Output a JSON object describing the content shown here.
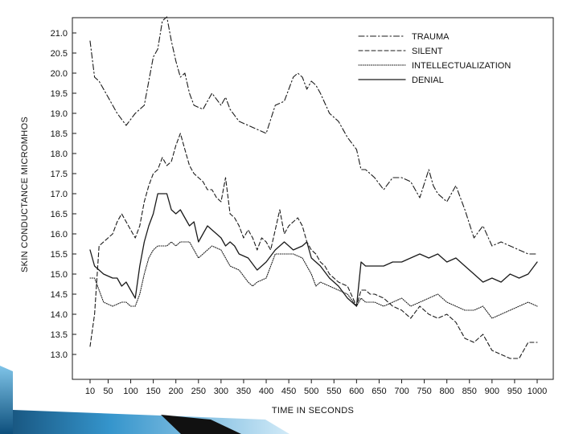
{
  "colors": {
    "ink": "#1a1a1a",
    "background": "#ffffff",
    "ribbon_light": "#7fc4e8",
    "ribbon_mid": "#2a8fc9",
    "ribbon_dark": "#0d4f7c",
    "wedge": "#111111"
  },
  "chart_data": {
    "type": "line",
    "title": "",
    "xlabel": "TIME IN SECONDS",
    "ylabel": "SKIN CONDUCTANCE MICROMHOS",
    "xlim": [
      10,
      1000
    ],
    "ylim": [
      12.6,
      21.4
    ],
    "x_ticks": [
      10,
      50,
      100,
      150,
      200,
      250,
      300,
      350,
      400,
      450,
      500,
      550,
      600,
      650,
      700,
      750,
      800,
      850,
      900,
      950,
      1000
    ],
    "x_tick_labels": [
      "10",
      "50",
      "100",
      "150",
      "200",
      "250",
      "300",
      "350",
      "400",
      "450",
      "500",
      "550",
      "600",
      "650",
      "700",
      "750",
      "800",
      "850",
      "900",
      "950",
      "1000"
    ],
    "y_ticks": [
      13.0,
      13.5,
      14.0,
      14.5,
      15.0,
      15.5,
      16.0,
      16.5,
      17.0,
      17.5,
      18.0,
      18.5,
      19.0,
      19.5,
      20.0,
      20.5,
      21.0
    ],
    "y_tick_labels": [
      "13.0",
      "13.5",
      "14.0",
      "14.5",
      "15.0",
      "15.5",
      "16.0",
      "16.5",
      "17.0",
      "17.5",
      "18.0",
      "18.5",
      "19.0",
      "19.5",
      "20.0",
      "20.5",
      "21.0"
    ],
    "grid": false,
    "legend_position": "top-right",
    "series": [
      {
        "name": "TRAUMA",
        "style": "dashdot",
        "x": [
          10,
          20,
          30,
          50,
          70,
          90,
          110,
          130,
          140,
          150,
          160,
          170,
          180,
          190,
          200,
          210,
          220,
          230,
          240,
          260,
          280,
          300,
          310,
          320,
          340,
          360,
          380,
          400,
          420,
          440,
          450,
          460,
          470,
          480,
          490,
          500,
          510,
          520,
          540,
          560,
          580,
          600,
          610,
          620,
          640,
          660,
          680,
          700,
          720,
          740,
          760,
          770,
          780,
          800,
          820,
          840,
          860,
          880,
          900,
          920,
          940,
          960,
          980,
          1000
        ],
        "values": [
          20.8,
          19.9,
          19.8,
          19.4,
          19.0,
          18.7,
          19.0,
          19.2,
          19.8,
          20.4,
          20.6,
          21.3,
          21.4,
          20.8,
          20.3,
          19.9,
          20.0,
          19.5,
          19.2,
          19.1,
          19.5,
          19.2,
          19.4,
          19.1,
          18.8,
          18.7,
          18.6,
          18.5,
          19.2,
          19.3,
          19.6,
          19.9,
          20.0,
          19.9,
          19.6,
          19.8,
          19.7,
          19.5,
          19.0,
          18.8,
          18.4,
          18.1,
          17.6,
          17.6,
          17.4,
          17.1,
          17.4,
          17.4,
          17.3,
          16.9,
          17.6,
          17.2,
          17.0,
          16.8,
          17.2,
          16.6,
          15.9,
          16.2,
          15.7,
          15.8,
          15.7,
          15.6,
          15.5,
          15.5
        ]
      },
      {
        "name": "SILENT",
        "style": "dashed",
        "x": [
          10,
          20,
          30,
          40,
          60,
          70,
          80,
          90,
          100,
          110,
          120,
          130,
          140,
          150,
          160,
          170,
          180,
          190,
          200,
          210,
          220,
          230,
          240,
          250,
          260,
          270,
          280,
          290,
          300,
          310,
          320,
          330,
          340,
          350,
          360,
          370,
          380,
          390,
          400,
          410,
          420,
          430,
          440,
          450,
          460,
          470,
          480,
          490,
          500,
          510,
          520,
          530,
          540,
          560,
          580,
          600,
          610,
          620,
          630,
          640,
          660,
          680,
          700,
          720,
          740,
          760,
          780,
          800,
          820,
          840,
          860,
          880,
          900,
          920,
          940,
          960,
          980,
          1000
        ],
        "values": [
          13.2,
          14.0,
          15.7,
          15.8,
          16.0,
          16.3,
          16.5,
          16.3,
          16.1,
          15.9,
          16.2,
          16.8,
          17.2,
          17.5,
          17.6,
          17.9,
          17.7,
          17.8,
          18.2,
          18.5,
          18.1,
          17.7,
          17.5,
          17.4,
          17.3,
          17.1,
          17.1,
          16.9,
          16.8,
          17.4,
          16.5,
          16.4,
          16.2,
          15.9,
          16.1,
          15.9,
          15.6,
          15.9,
          15.8,
          15.6,
          16.1,
          16.6,
          16.0,
          16.2,
          16.3,
          16.4,
          16.2,
          15.8,
          15.6,
          15.5,
          15.3,
          15.2,
          15.0,
          14.8,
          14.7,
          14.2,
          14.6,
          14.6,
          14.5,
          14.5,
          14.4,
          14.2,
          14.1,
          13.9,
          14.2,
          14.0,
          13.9,
          14.0,
          13.8,
          13.4,
          13.3,
          13.5,
          13.1,
          13.0,
          12.9,
          12.9,
          13.3,
          13.3
        ]
      },
      {
        "name": "INTELLECTUALIZATION",
        "style": "dotted",
        "x": [
          10,
          20,
          30,
          40,
          60,
          80,
          90,
          100,
          110,
          120,
          130,
          140,
          150,
          160,
          170,
          180,
          190,
          200,
          210,
          220,
          230,
          240,
          250,
          260,
          280,
          300,
          310,
          320,
          340,
          360,
          370,
          380,
          400,
          420,
          440,
          460,
          480,
          500,
          510,
          520,
          540,
          560,
          580,
          600,
          610,
          620,
          640,
          660,
          680,
          700,
          720,
          740,
          760,
          780,
          800,
          820,
          840,
          860,
          880,
          900,
          920,
          940,
          960,
          980,
          1000
        ],
        "values": [
          14.9,
          14.9,
          14.6,
          14.3,
          14.2,
          14.3,
          14.3,
          14.2,
          14.2,
          14.5,
          15.0,
          15.4,
          15.6,
          15.7,
          15.7,
          15.7,
          15.8,
          15.7,
          15.8,
          15.8,
          15.8,
          15.6,
          15.4,
          15.5,
          15.7,
          15.6,
          15.4,
          15.2,
          15.1,
          14.8,
          14.7,
          14.8,
          14.9,
          15.5,
          15.5,
          15.5,
          15.4,
          15.0,
          14.7,
          14.8,
          14.7,
          14.6,
          14.5,
          14.2,
          14.4,
          14.3,
          14.3,
          14.2,
          14.3,
          14.4,
          14.2,
          14.3,
          14.4,
          14.5,
          14.3,
          14.2,
          14.1,
          14.1,
          14.2,
          13.9,
          14.0,
          14.1,
          14.2,
          14.3,
          14.2
        ]
      },
      {
        "name": "DENIAL",
        "style": "solid",
        "x": [
          10,
          20,
          30,
          40,
          60,
          70,
          80,
          90,
          100,
          110,
          120,
          130,
          140,
          150,
          160,
          170,
          180,
          190,
          200,
          210,
          220,
          230,
          240,
          250,
          260,
          270,
          280,
          290,
          300,
          310,
          320,
          330,
          340,
          360,
          380,
          400,
          420,
          440,
          460,
          480,
          490,
          500,
          510,
          520,
          540,
          560,
          580,
          600,
          610,
          620,
          640,
          660,
          680,
          700,
          720,
          740,
          760,
          780,
          800,
          820,
          840,
          860,
          880,
          900,
          920,
          940,
          960,
          980,
          1000
        ],
        "values": [
          15.6,
          15.2,
          15.1,
          15.0,
          14.9,
          14.9,
          14.7,
          14.8,
          14.6,
          14.4,
          15.2,
          15.8,
          16.2,
          16.5,
          17.0,
          17.0,
          17.0,
          16.6,
          16.5,
          16.6,
          16.4,
          16.2,
          16.3,
          15.8,
          16.0,
          16.2,
          16.1,
          16.0,
          15.9,
          15.7,
          15.8,
          15.7,
          15.5,
          15.4,
          15.1,
          15.3,
          15.6,
          15.8,
          15.6,
          15.7,
          15.8,
          15.4,
          15.3,
          15.2,
          14.9,
          14.7,
          14.4,
          14.2,
          15.3,
          15.2,
          15.2,
          15.2,
          15.3,
          15.3,
          15.4,
          15.5,
          15.4,
          15.5,
          15.3,
          15.4,
          15.2,
          15.0,
          14.8,
          14.9,
          14.8,
          15.0,
          14.9,
          15.0,
          15.3
        ]
      }
    ]
  }
}
